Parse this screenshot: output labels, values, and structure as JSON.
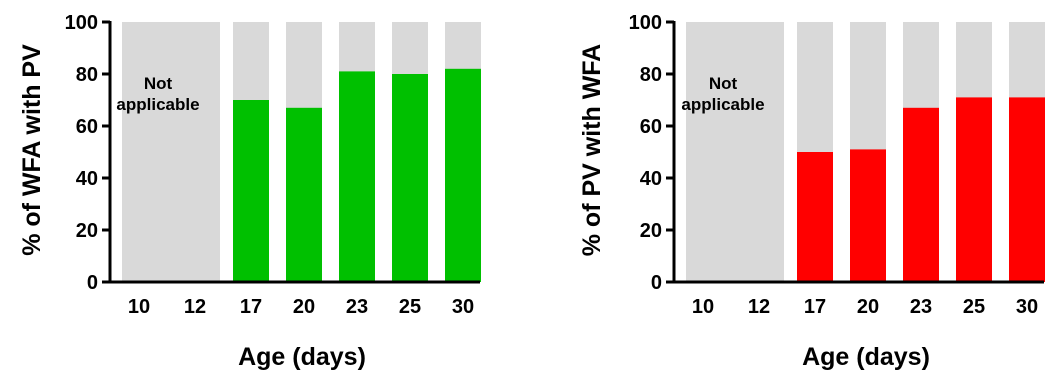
{
  "colors": {
    "background_bar": "#d9d9d9",
    "axis": "#000000"
  },
  "chart_data": [
    {
      "type": "bar",
      "categories": [
        "10",
        "12",
        "17",
        "20",
        "23",
        "25",
        "30"
      ],
      "series": [
        {
          "values": [
            null,
            null,
            70,
            67,
            81,
            80,
            82
          ]
        }
      ],
      "xlabel": "Age (days)",
      "ylabel": "% of WFA with PV",
      "ylim": [
        0,
        100
      ],
      "yticks": [
        "0",
        "20",
        "40",
        "60",
        "80",
        "100"
      ],
      "annotation": "Not applicable",
      "bar_color": "#00c000",
      "grid": false
    },
    {
      "type": "bar",
      "categories": [
        "10",
        "12",
        "17",
        "20",
        "23",
        "25",
        "30"
      ],
      "series": [
        {
          "values": [
            null,
            null,
            50,
            51,
            67,
            71,
            71
          ]
        }
      ],
      "xlabel": "Age (days)",
      "ylabel": "% of PV with  WFA",
      "ylim": [
        0,
        100
      ],
      "yticks": [
        "0",
        "20",
        "40",
        "60",
        "80",
        "100"
      ],
      "annotation": "Not applicable",
      "bar_color": "#ff0000",
      "grid": false
    }
  ]
}
